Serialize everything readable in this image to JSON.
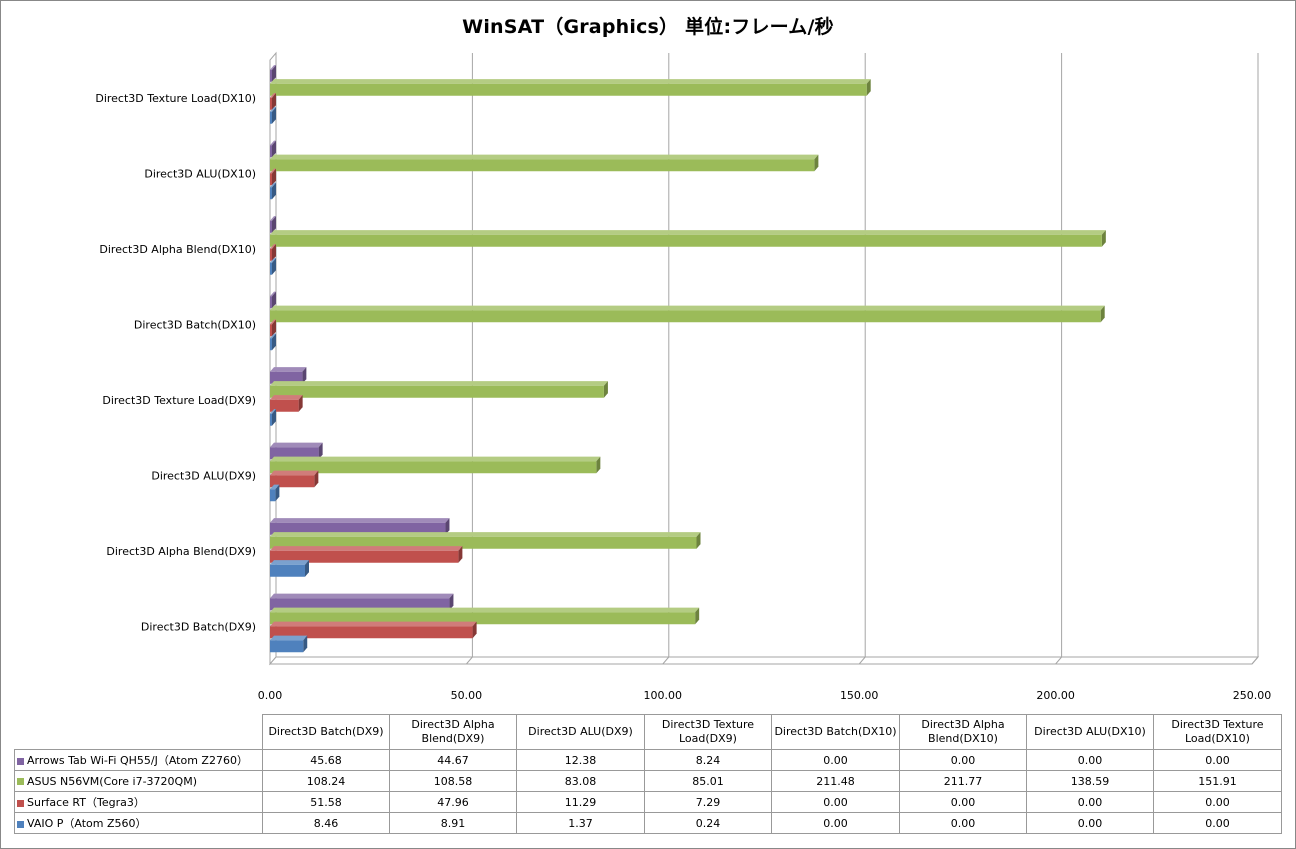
{
  "chart_data": {
    "type": "bar",
    "orientation": "horizontal",
    "style": "3d-clustered",
    "title": "WinSAT（Graphics） 単位:フレーム/秒",
    "categories": [
      "Direct3D Batch(DX9)",
      "Direct3D Alpha Blend(DX9)",
      "Direct3D ALU(DX9)",
      "Direct3D Texture Load(DX9)",
      "Direct3D Batch(DX10)",
      "Direct3D Alpha Blend(DX10)",
      "Direct3D ALU(DX10)",
      "Direct3D Texture Load(DX10)"
    ],
    "table_headers": [
      "Direct3D Batch(DX9)",
      "Direct3D Alpha Blend(DX9)",
      "Direct3D ALU(DX9)",
      "Direct3D Texture Load(DX9)",
      "Direct3D Batch(DX10)",
      "Direct3D Alpha Blend(DX10)",
      "Direct3D ALU(DX10)",
      "Direct3D Texture Load(DX10)"
    ],
    "series": [
      {
        "name": "Arrows Tab Wi-Fi QH55/J（Atom Z2760）",
        "color": "#8064a2",
        "values": [
          45.68,
          44.67,
          12.38,
          8.24,
          0,
          0,
          0,
          0
        ],
        "display": [
          "45.68",
          "44.67",
          "12.38",
          "8.24",
          "0.00",
          "0.00",
          "0.00",
          "0.00"
        ]
      },
      {
        "name": "ASUS N56VM(Core i7-3720QM)",
        "color": "#9bbb59",
        "values": [
          108.24,
          108.58,
          83.08,
          85.01,
          211.48,
          211.77,
          138.59,
          151.91
        ],
        "display": [
          "108.24",
          "108.58",
          "83.08",
          "85.01",
          "211.48",
          "211.77",
          "138.59",
          "151.91"
        ]
      },
      {
        "name": "Surface RT（Tegra3）",
        "color": "#c0504d",
        "values": [
          51.58,
          47.96,
          11.29,
          7.29,
          0,
          0,
          0,
          0
        ],
        "display": [
          "51.58",
          "47.96",
          "11.29",
          "7.29",
          "0.00",
          "0.00",
          "0.00",
          "0.00"
        ]
      },
      {
        "name": "VAIO P（Atom Z560）",
        "color": "#4f81bd",
        "values": [
          8.46,
          8.91,
          1.37,
          0.24,
          0,
          0,
          0,
          0
        ],
        "display": [
          "8.46",
          "8.91",
          "1.37",
          "0.24",
          "0.00",
          "0.00",
          "0.00",
          "0.00"
        ]
      }
    ],
    "xlim": [
      0,
      250
    ],
    "xticks": [
      "0.00",
      "50.00",
      "100.00",
      "150.00",
      "200.00",
      "250.00"
    ],
    "grid": true,
    "legend": "data-table-below"
  }
}
